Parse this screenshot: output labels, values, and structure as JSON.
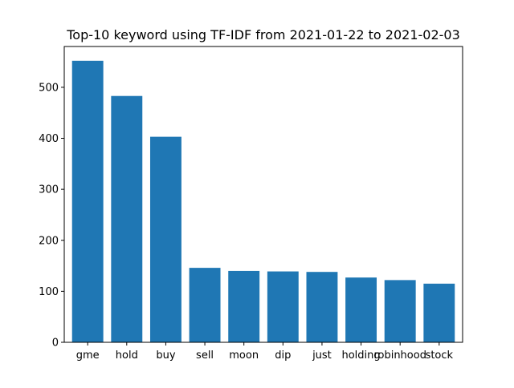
{
  "chart_data": {
    "type": "bar",
    "title": "Top-10 keyword using TF-IDF from 2021-01-22 to 2021-02-03",
    "xlabel": "",
    "ylabel": "",
    "categories": [
      "gme",
      "hold",
      "buy",
      "sell",
      "moon",
      "dip",
      "just",
      "holding",
      "robinhood",
      "stock"
    ],
    "values": [
      552,
      483,
      403,
      146,
      140,
      139,
      138,
      127,
      122,
      115
    ],
    "ylim": [
      0,
      580
    ],
    "yticks": [
      0,
      100,
      200,
      300,
      400,
      500
    ],
    "bar_color": "#1f77b4",
    "grid": false,
    "legend": false
  }
}
